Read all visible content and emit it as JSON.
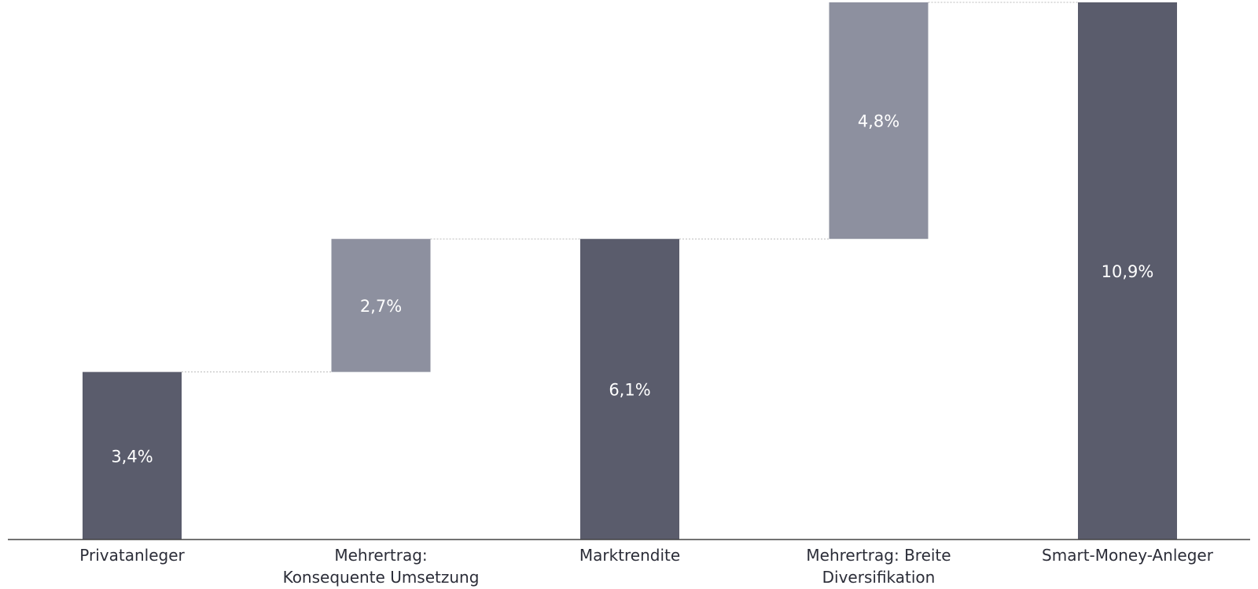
{
  "chart_data": {
    "type": "bar",
    "variant": "waterfall",
    "title": "",
    "xlabel": "",
    "ylabel": "",
    "ylim": [
      0,
      10.9
    ],
    "grid": false,
    "legend": "none",
    "colors": {
      "total": "#5a5c6c",
      "increment": "#8d909f",
      "axis": "#444444",
      "connector": "#bbbbbb"
    },
    "categories": [
      [
        "Privatanleger"
      ],
      [
        "Mehrertrag:",
        "Konsequente Umsetzung"
      ],
      [
        "Marktrendite"
      ],
      [
        "Mehrertrag: Breite",
        "Diversifikation"
      ],
      [
        "Smart-Money-Anleger"
      ]
    ],
    "bars": [
      {
        "kind": "total",
        "base": 0,
        "value": 3.4,
        "label": "3,4%"
      },
      {
        "kind": "increment",
        "base": 3.4,
        "value": 2.7,
        "label": "2,7%"
      },
      {
        "kind": "total",
        "base": 0,
        "value": 6.1,
        "label": "6,1%"
      },
      {
        "kind": "increment",
        "base": 6.1,
        "value": 4.8,
        "label": "4,8%"
      },
      {
        "kind": "total",
        "base": 0,
        "value": 10.9,
        "label": "10,9%"
      }
    ]
  }
}
